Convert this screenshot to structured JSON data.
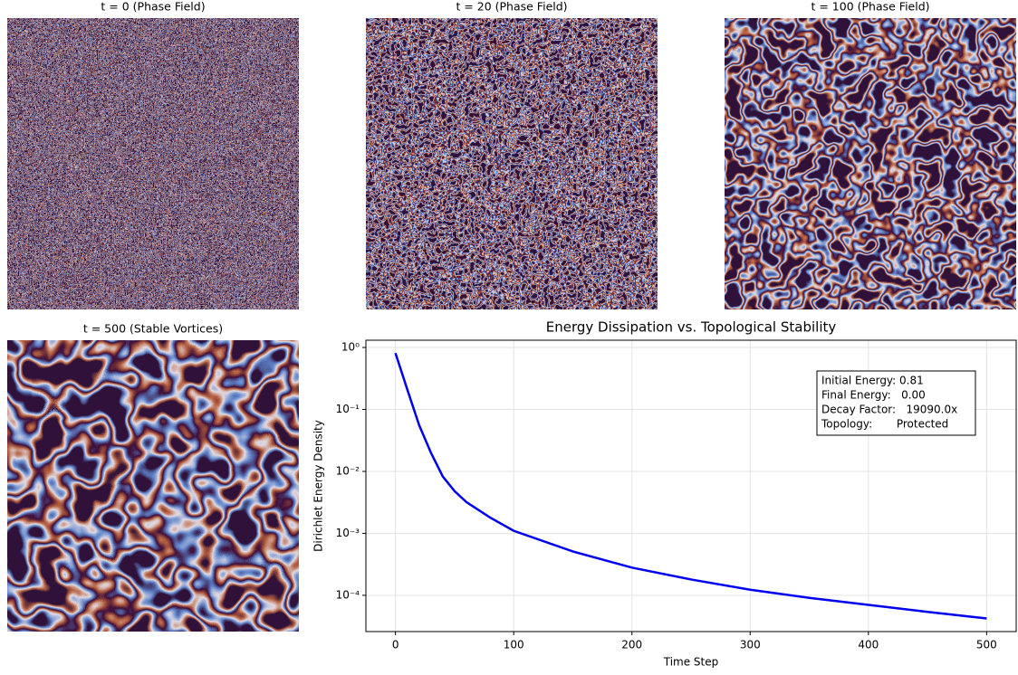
{
  "chart_data": [
    {
      "type": "image",
      "title": "t = 0 (Phase Field)",
      "frequency": 0.45
    },
    {
      "type": "image",
      "title": "t = 20 (Phase Field)",
      "frequency": 0.16
    },
    {
      "type": "image",
      "title": "t = 100 (Phase Field)",
      "frequency": 0.05
    },
    {
      "type": "image",
      "title": "t = 500 (Stable Vortices)",
      "frequency": 0.028
    },
    {
      "type": "line",
      "title": "Energy Dissipation vs. Topological Stability",
      "xlabel": "Time Step",
      "ylabel": "Dirichlet Energy Density",
      "x": [
        0,
        10,
        20,
        30,
        40,
        50,
        60,
        80,
        100,
        150,
        200,
        250,
        300,
        350,
        400,
        450,
        500
      ],
      "values": [
        0.81,
        0.21,
        0.056,
        0.02,
        0.0083,
        0.0048,
        0.0032,
        0.0018,
        0.0011,
        0.00051,
        0.00028,
        0.00018,
        0.000123,
        9.1e-05,
        7e-05,
        5.4e-05,
        4.24e-05
      ],
      "color": "#0000ee",
      "log_y": true,
      "grid": true,
      "xlim": [
        -25,
        525
      ],
      "ylim": [
        2.6e-05,
        1.31
      ],
      "xticks": [
        0,
        100,
        200,
        300,
        400,
        500
      ],
      "yticks": [
        {
          "value": 1,
          "label": "10⁰"
        },
        {
          "value": 0.1,
          "label": "10⁻¹"
        },
        {
          "value": 0.01,
          "label": "10⁻²"
        },
        {
          "value": 0.001,
          "label": "10⁻³"
        },
        {
          "value": 0.0001,
          "label": "10⁻⁴"
        }
      ],
      "annotation": [
        "Initial Energy: 0.81",
        "Final Energy:   0.00",
        "Decay Factor:   19090.0x",
        "Topology:       Protected"
      ]
    }
  ]
}
